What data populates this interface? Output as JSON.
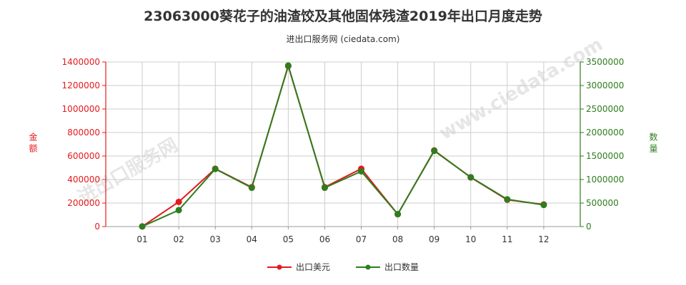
{
  "title": "23063000葵花子的油渣饺及其他固体残渣2019年出口月度走势",
  "subtitle": "进出口服务网 (ciedata.com)",
  "colors": {
    "left": "#e41a1c",
    "right": "#2e7d1e",
    "grid": "#cccccc"
  },
  "chart_data": {
    "type": "line",
    "categories": [
      "01",
      "02",
      "03",
      "04",
      "05",
      "06",
      "07",
      "08",
      "09",
      "10",
      "11",
      "12"
    ],
    "left_axis": {
      "label": "金额",
      "ylim": [
        0,
        1400000
      ],
      "ticks": [
        "0",
        "200000",
        "400000",
        "600000",
        "800000",
        "1000000",
        "1200000",
        "1400000"
      ]
    },
    "right_axis": {
      "label": "数量",
      "ylim": [
        0,
        3500000
      ],
      "ticks": [
        "0",
        "500000",
        "1000000",
        "1500000",
        "2000000",
        "2500000",
        "3000000",
        "3500000"
      ]
    },
    "series": [
      {
        "name": "出口美元",
        "axis": "left",
        "color": "#e41a1c",
        "values": [
          1000,
          210000,
          492000,
          335000,
          1365000,
          335000,
          492000,
          105000,
          648000,
          418000,
          228000,
          188000
        ]
      },
      {
        "name": "出口数量",
        "axis": "right",
        "color": "#2e7d1e",
        "values": [
          3000,
          350000,
          1225000,
          825000,
          3425000,
          825000,
          1175000,
          265000,
          1610000,
          1050000,
          580000,
          460000
        ]
      }
    ],
    "grid": true,
    "legend": "bottom"
  }
}
